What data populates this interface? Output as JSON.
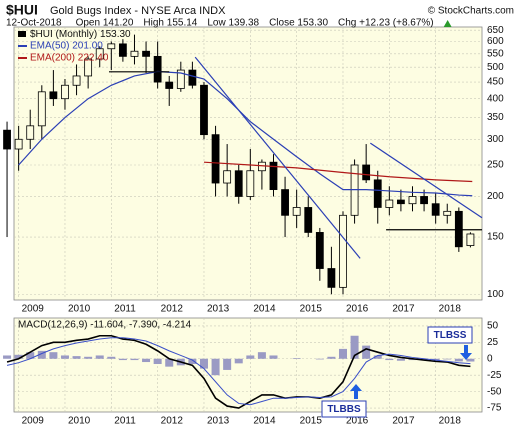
{
  "header": {
    "symbol": "$HUI",
    "title": "Gold Bugs Index - NYSE Arca INDX",
    "source": "© StockCharts.com",
    "date": "12-Oct-2018",
    "quote": [
      "Open 141.20",
      "High 155.14",
      "Low 139.38",
      "Close 153.30",
      "Chg +12.23 (+8.67%)"
    ]
  },
  "chart_data": [
    {
      "type": "candlestick",
      "name": "$HUI (Monthly) 153.30",
      "log_scale": true,
      "grid": true,
      "x": [
        2008.75,
        2009.0,
        2009.25,
        2009.5,
        2009.75,
        2010.0,
        2010.25,
        2010.5,
        2010.75,
        2011.0,
        2011.25,
        2011.5,
        2011.75,
        2012.0,
        2012.25,
        2012.5,
        2012.75,
        2013.0,
        2013.25,
        2013.5,
        2013.75,
        2014.0,
        2014.25,
        2014.5,
        2014.75,
        2015.0,
        2015.25,
        2015.5,
        2015.75,
        2016.0,
        2016.25,
        2016.5,
        2016.75,
        2017.0,
        2017.25,
        2017.5,
        2017.75,
        2018.0,
        2018.25,
        2018.5,
        2018.75
      ],
      "open": [
        320,
        280,
        300,
        330,
        420,
        400,
        440,
        470,
        530,
        570,
        590,
        540,
        560,
        540,
        450,
        430,
        490,
        440,
        310,
        220,
        240,
        200,
        240,
        255,
        210,
        175,
        185,
        155,
        120,
        105,
        175,
        250,
        225,
        185,
        195,
        190,
        200,
        190,
        175,
        180,
        141.2
      ],
      "high": [
        340,
        330,
        370,
        440,
        490,
        460,
        510,
        540,
        580,
        600,
        610,
        630,
        600,
        600,
        470,
        520,
        520,
        450,
        330,
        290,
        250,
        280,
        260,
        270,
        230,
        210,
        200,
        160,
        140,
        180,
        260,
        290,
        240,
        215,
        210,
        215,
        210,
        205,
        190,
        185,
        155.14
      ],
      "low": [
        150,
        240,
        280,
        300,
        380,
        370,
        410,
        430,
        500,
        490,
        520,
        510,
        480,
        430,
        380,
        420,
        430,
        300,
        200,
        200,
        190,
        195,
        210,
        200,
        150,
        160,
        150,
        110,
        100,
        100,
        165,
        220,
        165,
        175,
        180,
        180,
        180,
        165,
        165,
        135,
        139.38
      ],
      "close": [
        280,
        300,
        330,
        420,
        400,
        440,
        470,
        530,
        570,
        590,
        540,
        560,
        540,
        450,
        430,
        490,
        440,
        310,
        220,
        240,
        200,
        240,
        255,
        210,
        175,
        185,
        155,
        120,
        105,
        175,
        250,
        225,
        185,
        195,
        190,
        200,
        190,
        175,
        180,
        140,
        153.3
      ],
      "xlim": [
        2008.9,
        2019.0
      ],
      "xticks": [
        2009,
        2010,
        2011,
        2012,
        2013,
        2014,
        2015,
        2016,
        2017,
        2018
      ],
      "ylim": [
        96,
        665
      ],
      "yticks": [
        650,
        600,
        550,
        500,
        450,
        400,
        350,
        300,
        250,
        200,
        150,
        100
      ],
      "series": [
        {
          "name": "EMA(50) 201.00",
          "color": "#2b3fb5",
          "x": [
            2009.0,
            2009.5,
            2010.0,
            2010.5,
            2011.0,
            2011.5,
            2012.0,
            2012.5,
            2013.0,
            2013.5,
            2014.0,
            2014.5,
            2015.0,
            2015.5,
            2016.0,
            2016.5,
            2017.0,
            2017.5,
            2018.0,
            2018.5,
            2018.79
          ],
          "values": [
            250,
            300,
            350,
            400,
            440,
            470,
            485,
            480,
            460,
            400,
            340,
            300,
            265,
            235,
            210,
            210,
            208,
            206,
            205,
            202,
            201
          ]
        },
        {
          "name": "EMA(200) 222.40",
          "color": "#b01818",
          "x": [
            2013.0,
            2014.0,
            2015.0,
            2016.0,
            2017.0,
            2018.0,
            2018.79
          ],
          "values": [
            255,
            250,
            245,
            237,
            230,
            225,
            222.4
          ]
        }
      ],
      "trendlines": [
        {
          "color": "#2b3fb5",
          "x": [
            2012.81,
            2016.37
          ],
          "y": [
            537,
            129
          ]
        },
        {
          "color": "#2b3fb5",
          "x": [
            2016.59,
            2019.0
          ],
          "y": [
            292,
            172
          ]
        },
        {
          "color": "#000000",
          "x": [
            2016.93,
            2019.0
          ],
          "y": [
            158,
            158
          ]
        },
        {
          "color": "#000000",
          "x": [
            2010.95,
            2012.25
          ],
          "y": [
            484,
            484
          ]
        }
      ]
    },
    {
      "type": "macd",
      "title": "MACD(12,26,9) -11.604, -7.390, -4.214",
      "x": [
        2008.75,
        2009.0,
        2009.25,
        2009.5,
        2009.75,
        2010.0,
        2010.25,
        2010.5,
        2010.75,
        2011.0,
        2011.25,
        2011.5,
        2011.75,
        2012.0,
        2012.25,
        2012.5,
        2012.75,
        2013.0,
        2013.25,
        2013.5,
        2013.75,
        2014.0,
        2014.25,
        2014.5,
        2014.75,
        2015.0,
        2015.25,
        2015.5,
        2015.75,
        2016.0,
        2016.25,
        2016.5,
        2016.75,
        2017.0,
        2017.25,
        2017.5,
        2017.75,
        2018.0,
        2018.25,
        2018.5,
        2018.75
      ],
      "series": [
        {
          "color": "#000000",
          "values": [
            -5,
            0,
            10,
            20,
            25,
            25,
            28,
            30,
            35,
            35,
            30,
            28,
            22,
            12,
            0,
            -5,
            -10,
            -30,
            -60,
            -72,
            -75,
            -65,
            -55,
            -55,
            -60,
            -58,
            -58,
            -60,
            -55,
            -35,
            5,
            15,
            10,
            5,
            2,
            0,
            -2,
            -4,
            -5,
            -10,
            -11.604
          ]
        },
        {
          "color": "#3a4fc8",
          "values": [
            -10,
            -6,
            0,
            8,
            15,
            20,
            24,
            27,
            30,
            32,
            32,
            30,
            27,
            20,
            12,
            5,
            -2,
            -15,
            -35,
            -55,
            -68,
            -70,
            -65,
            -60,
            -60,
            -59,
            -58,
            -59,
            -58,
            -50,
            -30,
            -5,
            5,
            7,
            5,
            2,
            0,
            -2,
            -4,
            -6,
            -7.39
          ]
        }
      ],
      "histogram": {
        "color": "#9a9ac4",
        "values": [
          5,
          6,
          10,
          12,
          10,
          5,
          4,
          3,
          5,
          3,
          -2,
          -2,
          -5,
          -8,
          -12,
          -10,
          -8,
          -15,
          -25,
          -17,
          -7,
          5,
          10,
          5,
          0,
          1,
          0,
          -1,
          3,
          15,
          35,
          20,
          5,
          -2,
          -3,
          -2,
          -2,
          -2,
          -1,
          -4,
          -4.214
        ]
      },
      "xlim": [
        2008.9,
        2019.0
      ],
      "xticks": [
        2009,
        2010,
        2011,
        2012,
        2013,
        2014,
        2015,
        2016,
        2017,
        2018
      ],
      "ylim": [
        -81,
        62
      ],
      "yticks": [
        50,
        25,
        0,
        -25,
        -50,
        -75
      ],
      "annotations": [
        "TLBSS",
        "TLBBS"
      ]
    }
  ]
}
